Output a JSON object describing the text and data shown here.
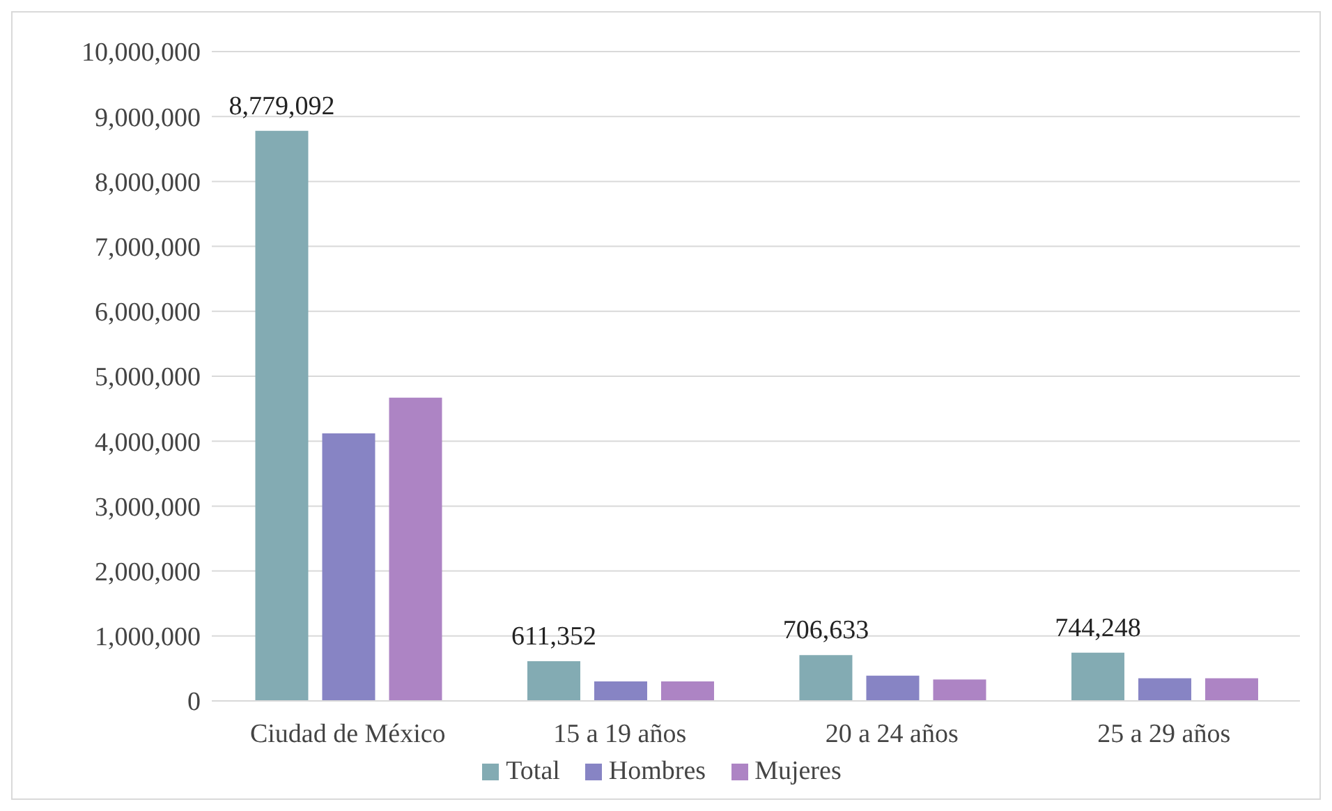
{
  "chart_data": {
    "type": "bar",
    "categories": [
      "Ciudad de México",
      "15 a 19 años",
      "20 a 24 años",
      "25 a 29 años"
    ],
    "series": [
      {
        "name": "Total",
        "color": "#83abb3",
        "values": [
          8779092,
          611352,
          706633,
          744248
        ],
        "value_labels": [
          "8,779,092",
          "611,352",
          "706,633",
          "744,248"
        ]
      },
      {
        "name": "Hombres",
        "color": "#8784c4",
        "values": [
          4120000,
          300000,
          390000,
          350000
        ]
      },
      {
        "name": "Mujeres",
        "color": "#ad84c4",
        "values": [
          4670000,
          300000,
          330000,
          350000
        ]
      }
    ],
    "ylim": [
      0,
      10000000
    ],
    "yticks": [
      0,
      {
        "value": 1000000,
        "label": "1,000,000"
      },
      {
        "value": 2000000,
        "label": "2,000,000"
      },
      {
        "value": 3000000,
        "label": "3,000,000"
      },
      {
        "value": 4000000,
        "label": "4,000,000"
      },
      {
        "value": 5000000,
        "label": "5,000,000"
      },
      {
        "value": 6000000,
        "label": "6,000,000"
      },
      {
        "value": 7000000,
        "label": "7,000,000"
      },
      {
        "value": 8000000,
        "label": "8,000,000"
      },
      {
        "value": 9000000,
        "label": "9,000,000"
      },
      {
        "value": 10000000,
        "label": "10,000,000"
      }
    ],
    "grid": "y",
    "legend": "bottom"
  }
}
